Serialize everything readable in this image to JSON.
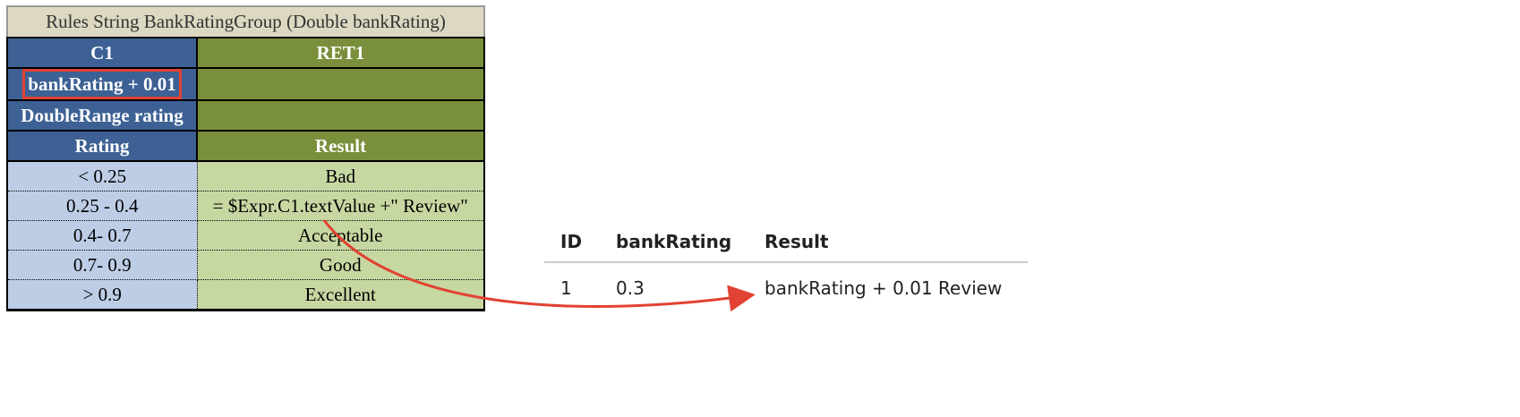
{
  "rules_table": {
    "title": "Rules String BankRatingGroup (Double bankRating)",
    "columns": {
      "condition_id": "C1",
      "return_id": "RET1"
    },
    "condition_expression": "bankRating + 0.01",
    "condition_parameter": "DoubleRange rating",
    "headers": {
      "condition": "Rating",
      "return": "Result"
    },
    "rows": [
      {
        "rating": "< 0.25",
        "result": "Bad"
      },
      {
        "rating": "0.25 - 0.4",
        "result": "= $Expr.C1.textValue +\" Review\""
      },
      {
        "rating": "0.4- 0.7",
        "result": "Acceptable"
      },
      {
        "rating": "0.7- 0.9",
        "result": "Good"
      },
      {
        "rating": "> 0.9",
        "result": "Excellent"
      }
    ],
    "colors": {
      "title_bg": "#dcd8c1",
      "header_blue": "#3d6194",
      "header_green": "#7a8f3b",
      "data_blue": "#bdcde6",
      "data_green": "#c7d7a2",
      "highlight": "#e24231"
    }
  },
  "results_table": {
    "headers": {
      "id": "ID",
      "bank_rating": "bankRating",
      "result": "Result"
    },
    "rows": [
      {
        "id": "1",
        "bank_rating": "0.3",
        "result": "bankRating + 0.01 Review"
      }
    ]
  },
  "arrow": {
    "color": "#e24231"
  }
}
